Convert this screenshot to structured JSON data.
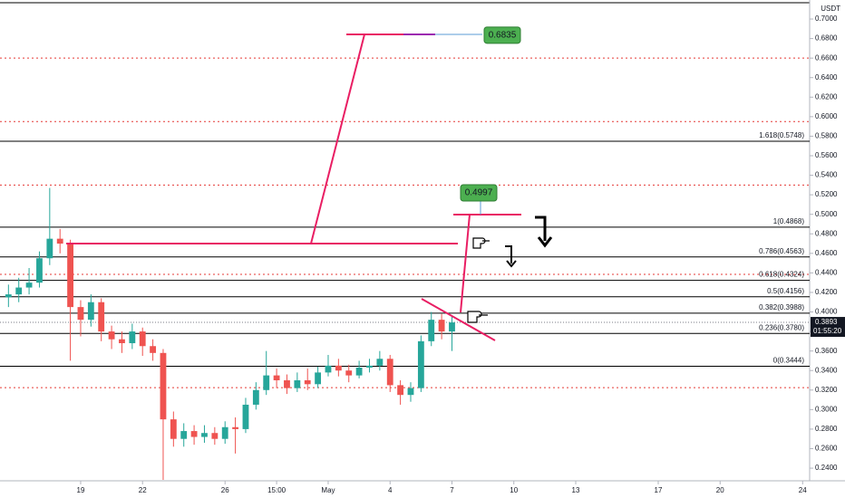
{
  "chart_data": {
    "type": "candlestick",
    "currency": "USDT",
    "x": [
      -3.5,
      -3,
      -2.5,
      -2,
      -1.5,
      -1,
      -0.5,
      0,
      0.5,
      1,
      1.5,
      2,
      2.5,
      3,
      3.5,
      4,
      4.5,
      5,
      5.5,
      6,
      6.5,
      7,
      7.5,
      8,
      8.5,
      9,
      9.5,
      10,
      10.5,
      11,
      11.5,
      12,
      12.5,
      13,
      13.5,
      14,
      14.5,
      15,
      15.5,
      16,
      16.5,
      17,
      17.5,
      18
    ],
    "open": [
      0.415,
      0.418,
      0.425,
      0.43,
      0.455,
      0.475,
      0.47,
      0.405,
      0.392,
      0.41,
      0.38,
      0.372,
      0.368,
      0.38,
      0.365,
      0.358,
      0.29,
      0.27,
      0.278,
      0.272,
      0.276,
      0.27,
      0.282,
      0.28,
      0.305,
      0.32,
      0.335,
      0.33,
      0.322,
      0.33,
      0.326,
      0.338,
      0.345,
      0.34,
      0.335,
      0.343,
      0.345,
      0.352,
      0.325,
      0.315,
      0.322,
      0.37,
      0.392,
      0.38
    ],
    "high": [
      0.428,
      0.435,
      0.445,
      0.462,
      0.527,
      0.485,
      0.474,
      0.412,
      0.418,
      0.414,
      0.386,
      0.38,
      0.388,
      0.384,
      0.372,
      0.362,
      0.298,
      0.286,
      0.284,
      0.284,
      0.282,
      0.288,
      0.292,
      0.312,
      0.328,
      0.36,
      0.342,
      0.336,
      0.338,
      0.342,
      0.344,
      0.356,
      0.352,
      0.346,
      0.35,
      0.352,
      0.36,
      0.356,
      0.33,
      0.328,
      0.376,
      0.4,
      0.398,
      0.396
    ],
    "low": [
      0.405,
      0.41,
      0.418,
      0.425,
      0.448,
      0.46,
      0.35,
      0.375,
      0.385,
      0.37,
      0.362,
      0.358,
      0.362,
      0.355,
      0.35,
      0.228,
      0.262,
      0.262,
      0.264,
      0.266,
      0.264,
      0.265,
      0.255,
      0.276,
      0.3,
      0.315,
      0.322,
      0.316,
      0.318,
      0.32,
      0.322,
      0.334,
      0.334,
      0.328,
      0.332,
      0.338,
      0.34,
      0.318,
      0.305,
      0.308,
      0.318,
      0.365,
      0.372,
      0.36
    ],
    "close": [
      0.418,
      0.425,
      0.43,
      0.455,
      0.475,
      0.47,
      0.405,
      0.392,
      0.41,
      0.38,
      0.372,
      0.368,
      0.38,
      0.365,
      0.358,
      0.29,
      0.27,
      0.278,
      0.272,
      0.276,
      0.27,
      0.282,
      0.28,
      0.305,
      0.32,
      0.335,
      0.33,
      0.322,
      0.33,
      0.326,
      0.338,
      0.345,
      0.34,
      0.335,
      0.343,
      0.345,
      0.352,
      0.325,
      0.315,
      0.322,
      0.37,
      0.392,
      0.38,
      0.3893
    ],
    "up_color": "#26a69a",
    "down_color": "#ef5350",
    "xlim": [
      -3.91,
      35.34
    ],
    "xticks": [
      {
        "value": 0,
        "label": "19"
      },
      {
        "value": 3,
        "label": "22"
      },
      {
        "value": 7,
        "label": "26"
      },
      {
        "value": 9.5,
        "label": "15:00"
      },
      {
        "value": 12,
        "label": "May"
      },
      {
        "value": 15,
        "label": "4"
      },
      {
        "value": 18,
        "label": "7"
      },
      {
        "value": 21,
        "label": "10"
      },
      {
        "value": 24,
        "label": "13"
      },
      {
        "value": 28,
        "label": "17"
      },
      {
        "value": 31,
        "label": "20"
      },
      {
        "value": 35,
        "label": "24"
      }
    ],
    "ylim": [
      0.2215,
      0.7195
    ],
    "yticks": [
      {
        "value": 0.24,
        "label": "0.2400"
      },
      {
        "value": 0.26,
        "label": "0.2600"
      },
      {
        "value": 0.28,
        "label": "0.2800"
      },
      {
        "value": 0.3,
        "label": "0.3000"
      },
      {
        "value": 0.32,
        "label": "0.3200"
      },
      {
        "value": 0.34,
        "label": "0.3400"
      },
      {
        "value": 0.36,
        "label": "0.3600"
      },
      {
        "value": 0.38,
        "label": "0.3800"
      },
      {
        "value": 0.4,
        "label": "0.4000"
      },
      {
        "value": 0.42,
        "label": "0.4200"
      },
      {
        "value": 0.44,
        "label": "0.4400"
      },
      {
        "value": 0.46,
        "label": "0.4600"
      },
      {
        "value": 0.48,
        "label": "0.4800"
      },
      {
        "value": 0.5,
        "label": "0.5000"
      },
      {
        "value": 0.52,
        "label": "0.5200"
      },
      {
        "value": 0.54,
        "label": "0.5400"
      },
      {
        "value": 0.56,
        "label": "0.5600"
      },
      {
        "value": 0.58,
        "label": "0.5800"
      },
      {
        "value": 0.6,
        "label": "0.6000"
      },
      {
        "value": 0.62,
        "label": "0.6200"
      },
      {
        "value": 0.64,
        "label": "0.6400"
      },
      {
        "value": 0.66,
        "label": "0.6600"
      },
      {
        "value": 0.68,
        "label": "0.6800"
      },
      {
        "value": 0.7,
        "label": "0.7000"
      }
    ],
    "fib_levels": [
      {
        "label": "1.618(0.5748)",
        "value": 0.5748
      },
      {
        "label": "1(0.4868)",
        "value": 0.4868
      },
      {
        "label": "0.786(0.4563)",
        "value": 0.4563
      },
      {
        "label": "0.618(0.4324)",
        "value": 0.4324
      },
      {
        "label": "0.5(0.4156)",
        "value": 0.4156
      },
      {
        "label": "0.382(0.3988)",
        "value": 0.3988
      },
      {
        "label": "0.236(0.3780)",
        "value": 0.378
      },
      {
        "label": "0(0.3444)",
        "value": 0.3444
      }
    ],
    "dotted_levels": [
      0.66,
      0.595,
      0.53,
      0.4385,
      0.3225
    ],
    "targets": [
      0.6835,
      0.4997
    ],
    "last_price": {
      "value": 0.3893,
      "label": "0.3893"
    },
    "countdown": "01:55:20"
  }
}
